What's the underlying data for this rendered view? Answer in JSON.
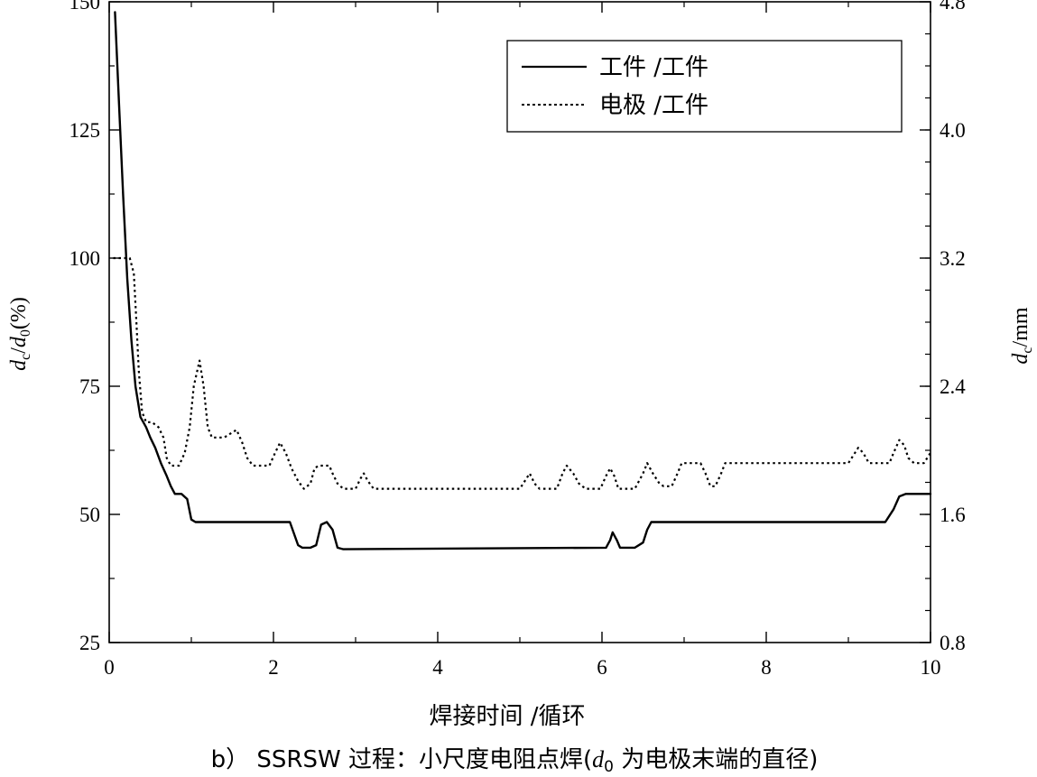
{
  "chart_data": {
    "type": "line",
    "xlabel": "焊接时间 /循环",
    "ylabel_left": {
      "main": "d",
      "sub1": "c",
      "mid": "/",
      "main2": "d",
      "sub2": "0",
      "tail": "(%)"
    },
    "ylabel_right": {
      "main": "d",
      "sub": "c",
      "tail": "/mm"
    },
    "xlim": [
      0,
      10
    ],
    "ylim_left": [
      25,
      150
    ],
    "ylim_right": [
      0.8,
      4.8
    ],
    "x_ticks": [
      "0",
      "2",
      "4",
      "6",
      "8",
      "10"
    ],
    "y_ticks_left": [
      "25",
      "50",
      "75",
      "100",
      "125",
      "150"
    ],
    "y_ticks_right": [
      "0.8",
      "1.6",
      "2.4",
      "3.2",
      "4.0",
      "4.8"
    ],
    "legend_position": "top-right",
    "series": [
      {
        "name": "工件 /工件",
        "style": "solid",
        "points": [
          [
            0.07,
            148
          ],
          [
            0.12,
            130
          ],
          [
            0.17,
            112
          ],
          [
            0.22,
            96
          ],
          [
            0.27,
            84
          ],
          [
            0.32,
            75
          ],
          [
            0.38,
            69
          ],
          [
            0.45,
            67
          ],
          [
            0.5,
            65
          ],
          [
            0.56,
            63
          ],
          [
            0.63,
            60
          ],
          [
            0.7,
            57.5
          ],
          [
            0.75,
            55.5
          ],
          [
            0.8,
            54
          ],
          [
            0.88,
            54
          ],
          [
            0.95,
            53
          ],
          [
            1.0,
            49
          ],
          [
            1.05,
            48.5
          ],
          [
            2.2,
            48.5
          ],
          [
            2.3,
            44
          ],
          [
            2.35,
            43.5
          ],
          [
            2.45,
            43.5
          ],
          [
            2.52,
            44
          ],
          [
            2.58,
            48
          ],
          [
            2.65,
            48.5
          ],
          [
            2.72,
            47
          ],
          [
            2.78,
            43.5
          ],
          [
            2.85,
            43.2
          ],
          [
            6.05,
            43.5
          ],
          [
            6.1,
            45
          ],
          [
            6.13,
            46.5
          ],
          [
            6.18,
            45
          ],
          [
            6.22,
            43.5
          ],
          [
            6.4,
            43.5
          ],
          [
            6.5,
            44.5
          ],
          [
            6.55,
            47
          ],
          [
            6.6,
            48.5
          ],
          [
            9.45,
            48.5
          ],
          [
            9.55,
            51
          ],
          [
            9.62,
            53.5
          ],
          [
            9.7,
            54
          ],
          [
            10,
            54
          ]
        ]
      },
      {
        "name": "电极 /工件",
        "style": "dotted",
        "points": [
          [
            0.05,
            100
          ],
          [
            0.25,
            100
          ],
          [
            0.3,
            97
          ],
          [
            0.33,
            88
          ],
          [
            0.36,
            78
          ],
          [
            0.4,
            70
          ],
          [
            0.45,
            68
          ],
          [
            0.52,
            68
          ],
          [
            0.6,
            67
          ],
          [
            0.66,
            65
          ],
          [
            0.7,
            61
          ],
          [
            0.75,
            59.5
          ],
          [
            0.85,
            59.5
          ],
          [
            0.92,
            62
          ],
          [
            0.98,
            67
          ],
          [
            1.03,
            75
          ],
          [
            1.1,
            80
          ],
          [
            1.15,
            75
          ],
          [
            1.2,
            67
          ],
          [
            1.25,
            65
          ],
          [
            1.4,
            65
          ],
          [
            1.5,
            66
          ],
          [
            1.55,
            66.5
          ],
          [
            1.62,
            64
          ],
          [
            1.68,
            61
          ],
          [
            1.75,
            59.5
          ],
          [
            1.95,
            59.5
          ],
          [
            2.02,
            62
          ],
          [
            2.08,
            64
          ],
          [
            2.15,
            62
          ],
          [
            2.22,
            59
          ],
          [
            2.3,
            56.5
          ],
          [
            2.37,
            55
          ],
          [
            2.45,
            56
          ],
          [
            2.5,
            59
          ],
          [
            2.55,
            59.5
          ],
          [
            2.68,
            59.5
          ],
          [
            2.72,
            58
          ],
          [
            2.78,
            56
          ],
          [
            2.85,
            55
          ],
          [
            3.0,
            55
          ],
          [
            3.06,
            57
          ],
          [
            3.1,
            58
          ],
          [
            3.15,
            56.5
          ],
          [
            3.22,
            55
          ],
          [
            5.0,
            55
          ],
          [
            5.08,
            57
          ],
          [
            5.12,
            58
          ],
          [
            5.18,
            56
          ],
          [
            5.24,
            55
          ],
          [
            5.45,
            55
          ],
          [
            5.52,
            58
          ],
          [
            5.57,
            59.5
          ],
          [
            5.65,
            58
          ],
          [
            5.72,
            56
          ],
          [
            5.8,
            55
          ],
          [
            5.98,
            55
          ],
          [
            6.05,
            57.5
          ],
          [
            6.1,
            59
          ],
          [
            6.15,
            57.5
          ],
          [
            6.2,
            55
          ],
          [
            6.4,
            55
          ],
          [
            6.5,
            58
          ],
          [
            6.55,
            60
          ],
          [
            6.62,
            58
          ],
          [
            6.7,
            56
          ],
          [
            6.75,
            55.5
          ],
          [
            6.85,
            55.5
          ],
          [
            6.92,
            58
          ],
          [
            6.97,
            60
          ],
          [
            7.2,
            60
          ],
          [
            7.26,
            58
          ],
          [
            7.32,
            55.5
          ],
          [
            7.38,
            55.5
          ],
          [
            7.45,
            58
          ],
          [
            7.5,
            60
          ],
          [
            9.0,
            60
          ],
          [
            9.08,
            62
          ],
          [
            9.12,
            63
          ],
          [
            9.18,
            62
          ],
          [
            9.25,
            60
          ],
          [
            9.5,
            60
          ],
          [
            9.55,
            62
          ],
          [
            9.62,
            64.5
          ],
          [
            9.68,
            63.5
          ],
          [
            9.73,
            61
          ],
          [
            9.8,
            60
          ],
          [
            9.92,
            60
          ],
          [
            10,
            62
          ]
        ]
      }
    ]
  },
  "caption": {
    "prefix": "b） SSRSW 过程：小尺度电阻点焊(",
    "d": "d",
    "sub": "0",
    "suffix": " 为电极末端的直径)"
  }
}
